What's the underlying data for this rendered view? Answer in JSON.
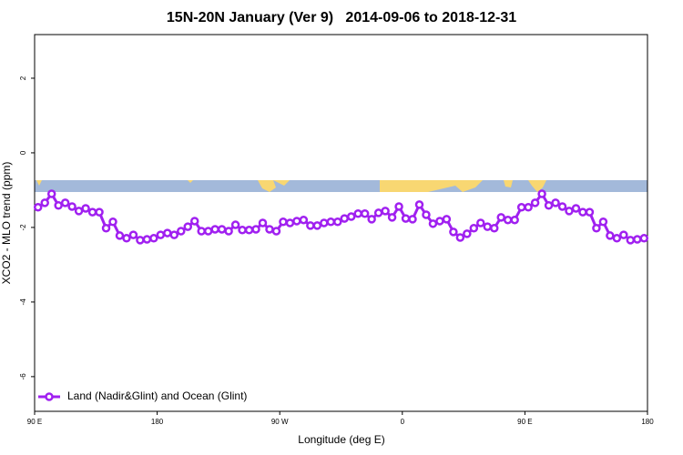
{
  "chart_data": {
    "type": "line",
    "title": "15N-20N January (Ver 9)   2014-09-06 to 2018-12-31",
    "x_label": "Longitude (deg E)",
    "y_label": "XCO2 - MLO trend (ppm)",
    "xlim": [
      90,
      540
    ],
    "ylim": [
      -6.93,
      3.17
    ],
    "xticks": [
      {
        "value": 90,
        "label": "90 E"
      },
      180,
      {
        "value": 270,
        "label": "90 W"
      },
      {
        "value": 360,
        "label": "0"
      },
      {
        "value": 450,
        "label": "90 E"
      },
      {
        "value": 540,
        "label": "180"
      }
    ],
    "yticks": [
      -6,
      -4,
      -2,
      0,
      2
    ],
    "legend_position": "bottom-left",
    "x": [
      92.5,
      97.5,
      102.5,
      107.5,
      112.5,
      117.5,
      122.5,
      127.5,
      132.5,
      137.5,
      142.5,
      147.5,
      152.5,
      157.5,
      162.5,
      167.5,
      172.5,
      177.5,
      182.5,
      187.5,
      192.5,
      197.5,
      202.5,
      207.5,
      212.5,
      217.5,
      222.5,
      227.5,
      232.5,
      237.5,
      242.5,
      247.5,
      252.5,
      257.5,
      262.5,
      267.5,
      272.5,
      277.5,
      282.5,
      287.5,
      292.5,
      297.5,
      302.5,
      307.5,
      312.5,
      317.5,
      322.5,
      327.5,
      332.5,
      337.5,
      342.5,
      347.5,
      352.5,
      357.5,
      362.5,
      367.5,
      372.5,
      377.5,
      382.5,
      387.5,
      392.5,
      397.5,
      402.5,
      407.5,
      412.5,
      417.5,
      422.5,
      427.5,
      432.5,
      437.5,
      442.5,
      447.5,
      452.5,
      457.5,
      462.5,
      467.5,
      472.5,
      477.5,
      482.5,
      487.5,
      492.5,
      497.5,
      502.5,
      507.5,
      512.5,
      517.5,
      522.5,
      527.5,
      532.5,
      537.5
    ],
    "series": [
      {
        "name": "Land (Nadir&Glint) and Ocean (Glint)",
        "color": "#a020f0",
        "values": [
          -1.46,
          -1.34,
          -1.1,
          -1.41,
          -1.34,
          -1.44,
          -1.56,
          -1.49,
          -1.59,
          -1.59,
          -2.02,
          -1.85,
          -2.22,
          -2.29,
          -2.2,
          -2.34,
          -2.32,
          -2.29,
          -2.2,
          -2.15,
          -2.2,
          -2.1,
          -1.98,
          -1.83,
          -2.1,
          -2.1,
          -2.05,
          -2.05,
          -2.1,
          -1.93,
          -2.07,
          -2.07,
          -2.05,
          -1.88,
          -2.05,
          -2.1,
          -1.85,
          -1.88,
          -1.83,
          -1.8,
          -1.95,
          -1.95,
          -1.88,
          -1.85,
          -1.85,
          -1.76,
          -1.71,
          -1.63,
          -1.63,
          -1.78,
          -1.61,
          -1.56,
          -1.73,
          -1.44,
          -1.76,
          -1.78,
          -1.39,
          -1.66,
          -1.9,
          -1.83,
          -1.78,
          -2.12,
          -2.27,
          -2.17,
          -2.02,
          -1.88,
          -1.98,
          -2.02,
          -1.73,
          -1.8,
          -1.8,
          -1.46,
          -1.46,
          -1.34,
          -1.1,
          -1.41,
          -1.34,
          -1.44,
          -1.56,
          -1.49,
          -1.59,
          -1.59,
          -2.02,
          -1.85,
          -2.22,
          -2.29,
          -2.2,
          -2.34,
          -2.32,
          -2.29
        ]
      }
    ]
  }
}
